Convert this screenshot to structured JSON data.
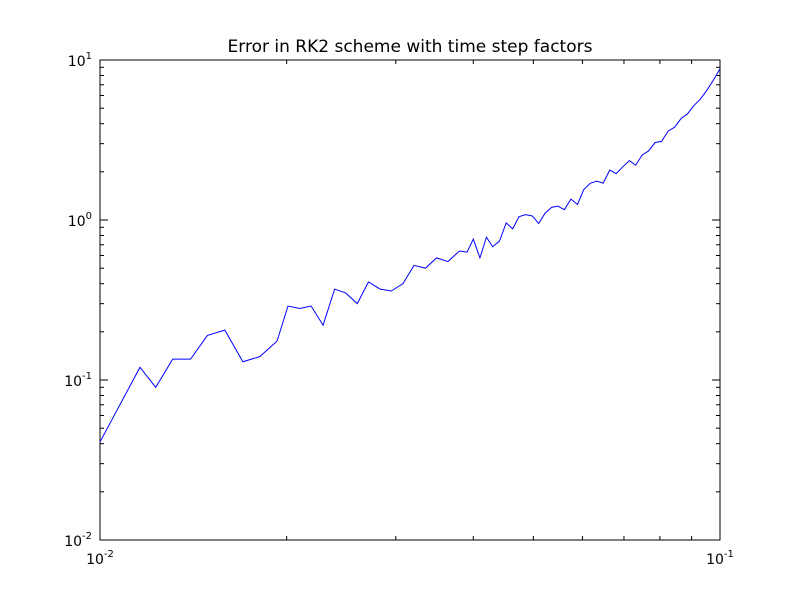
{
  "chart_data": {
    "type": "line",
    "title": "Error in RK2 scheme with time step factors",
    "xlabel": "",
    "ylabel": "",
    "xscale": "log",
    "yscale": "log",
    "xlim": [
      0.01,
      0.1
    ],
    "ylim": [
      0.01,
      10
    ],
    "grid": false,
    "x_ticks": [
      {
        "base": "10",
        "exp": "-2",
        "value": 0.01
      },
      {
        "base": "10",
        "exp": "-1",
        "value": 0.1
      }
    ],
    "y_ticks": [
      {
        "base": "10",
        "exp": "-2",
        "value": 0.01
      },
      {
        "base": "10",
        "exp": "-1",
        "value": 0.1
      },
      {
        "base": "10",
        "exp": "0",
        "value": 1
      },
      {
        "base": "10",
        "exp": "1",
        "value": 10
      }
    ],
    "series": [
      {
        "color": "#0000ff",
        "x": [
          0.01,
          0.0116,
          0.0123,
          0.0131,
          0.014,
          0.0149,
          0.0159,
          0.017,
          0.0181,
          0.0193,
          0.0201,
          0.021,
          0.0219,
          0.0229,
          0.0239,
          0.0249,
          0.026,
          0.0271,
          0.0283,
          0.0295,
          0.0308,
          0.0321,
          0.0335,
          0.0349,
          0.0364,
          0.038,
          0.0391,
          0.04,
          0.041,
          0.042,
          0.043,
          0.0441,
          0.0452,
          0.0463,
          0.0474,
          0.0486,
          0.0498,
          0.051,
          0.0522,
          0.0535,
          0.0548,
          0.0561,
          0.0575,
          0.0589,
          0.0603,
          0.0618,
          0.0633,
          0.0648,
          0.0664,
          0.068,
          0.0697,
          0.0714,
          0.0731,
          0.0749,
          0.0767,
          0.0786,
          0.0805,
          0.0825,
          0.0845,
          0.0865,
          0.0886,
          0.0908,
          0.093,
          0.0953,
          0.0976,
          0.1
        ],
        "y": [
          0.041,
          0.12,
          0.09,
          0.135,
          0.135,
          0.19,
          0.205,
          0.13,
          0.14,
          0.175,
          0.29,
          0.28,
          0.29,
          0.22,
          0.37,
          0.35,
          0.3,
          0.41,
          0.37,
          0.36,
          0.4,
          0.52,
          0.5,
          0.58,
          0.55,
          0.64,
          0.63,
          0.76,
          0.58,
          0.78,
          0.68,
          0.74,
          0.96,
          0.88,
          1.05,
          1.08,
          1.06,
          0.95,
          1.1,
          1.2,
          1.22,
          1.16,
          1.35,
          1.25,
          1.55,
          1.7,
          1.75,
          1.7,
          2.05,
          1.95,
          2.15,
          2.35,
          2.2,
          2.55,
          2.7,
          3.05,
          3.1,
          3.6,
          3.8,
          4.3,
          4.6,
          5.2,
          5.7,
          6.5,
          7.5,
          8.8
        ]
      }
    ]
  }
}
